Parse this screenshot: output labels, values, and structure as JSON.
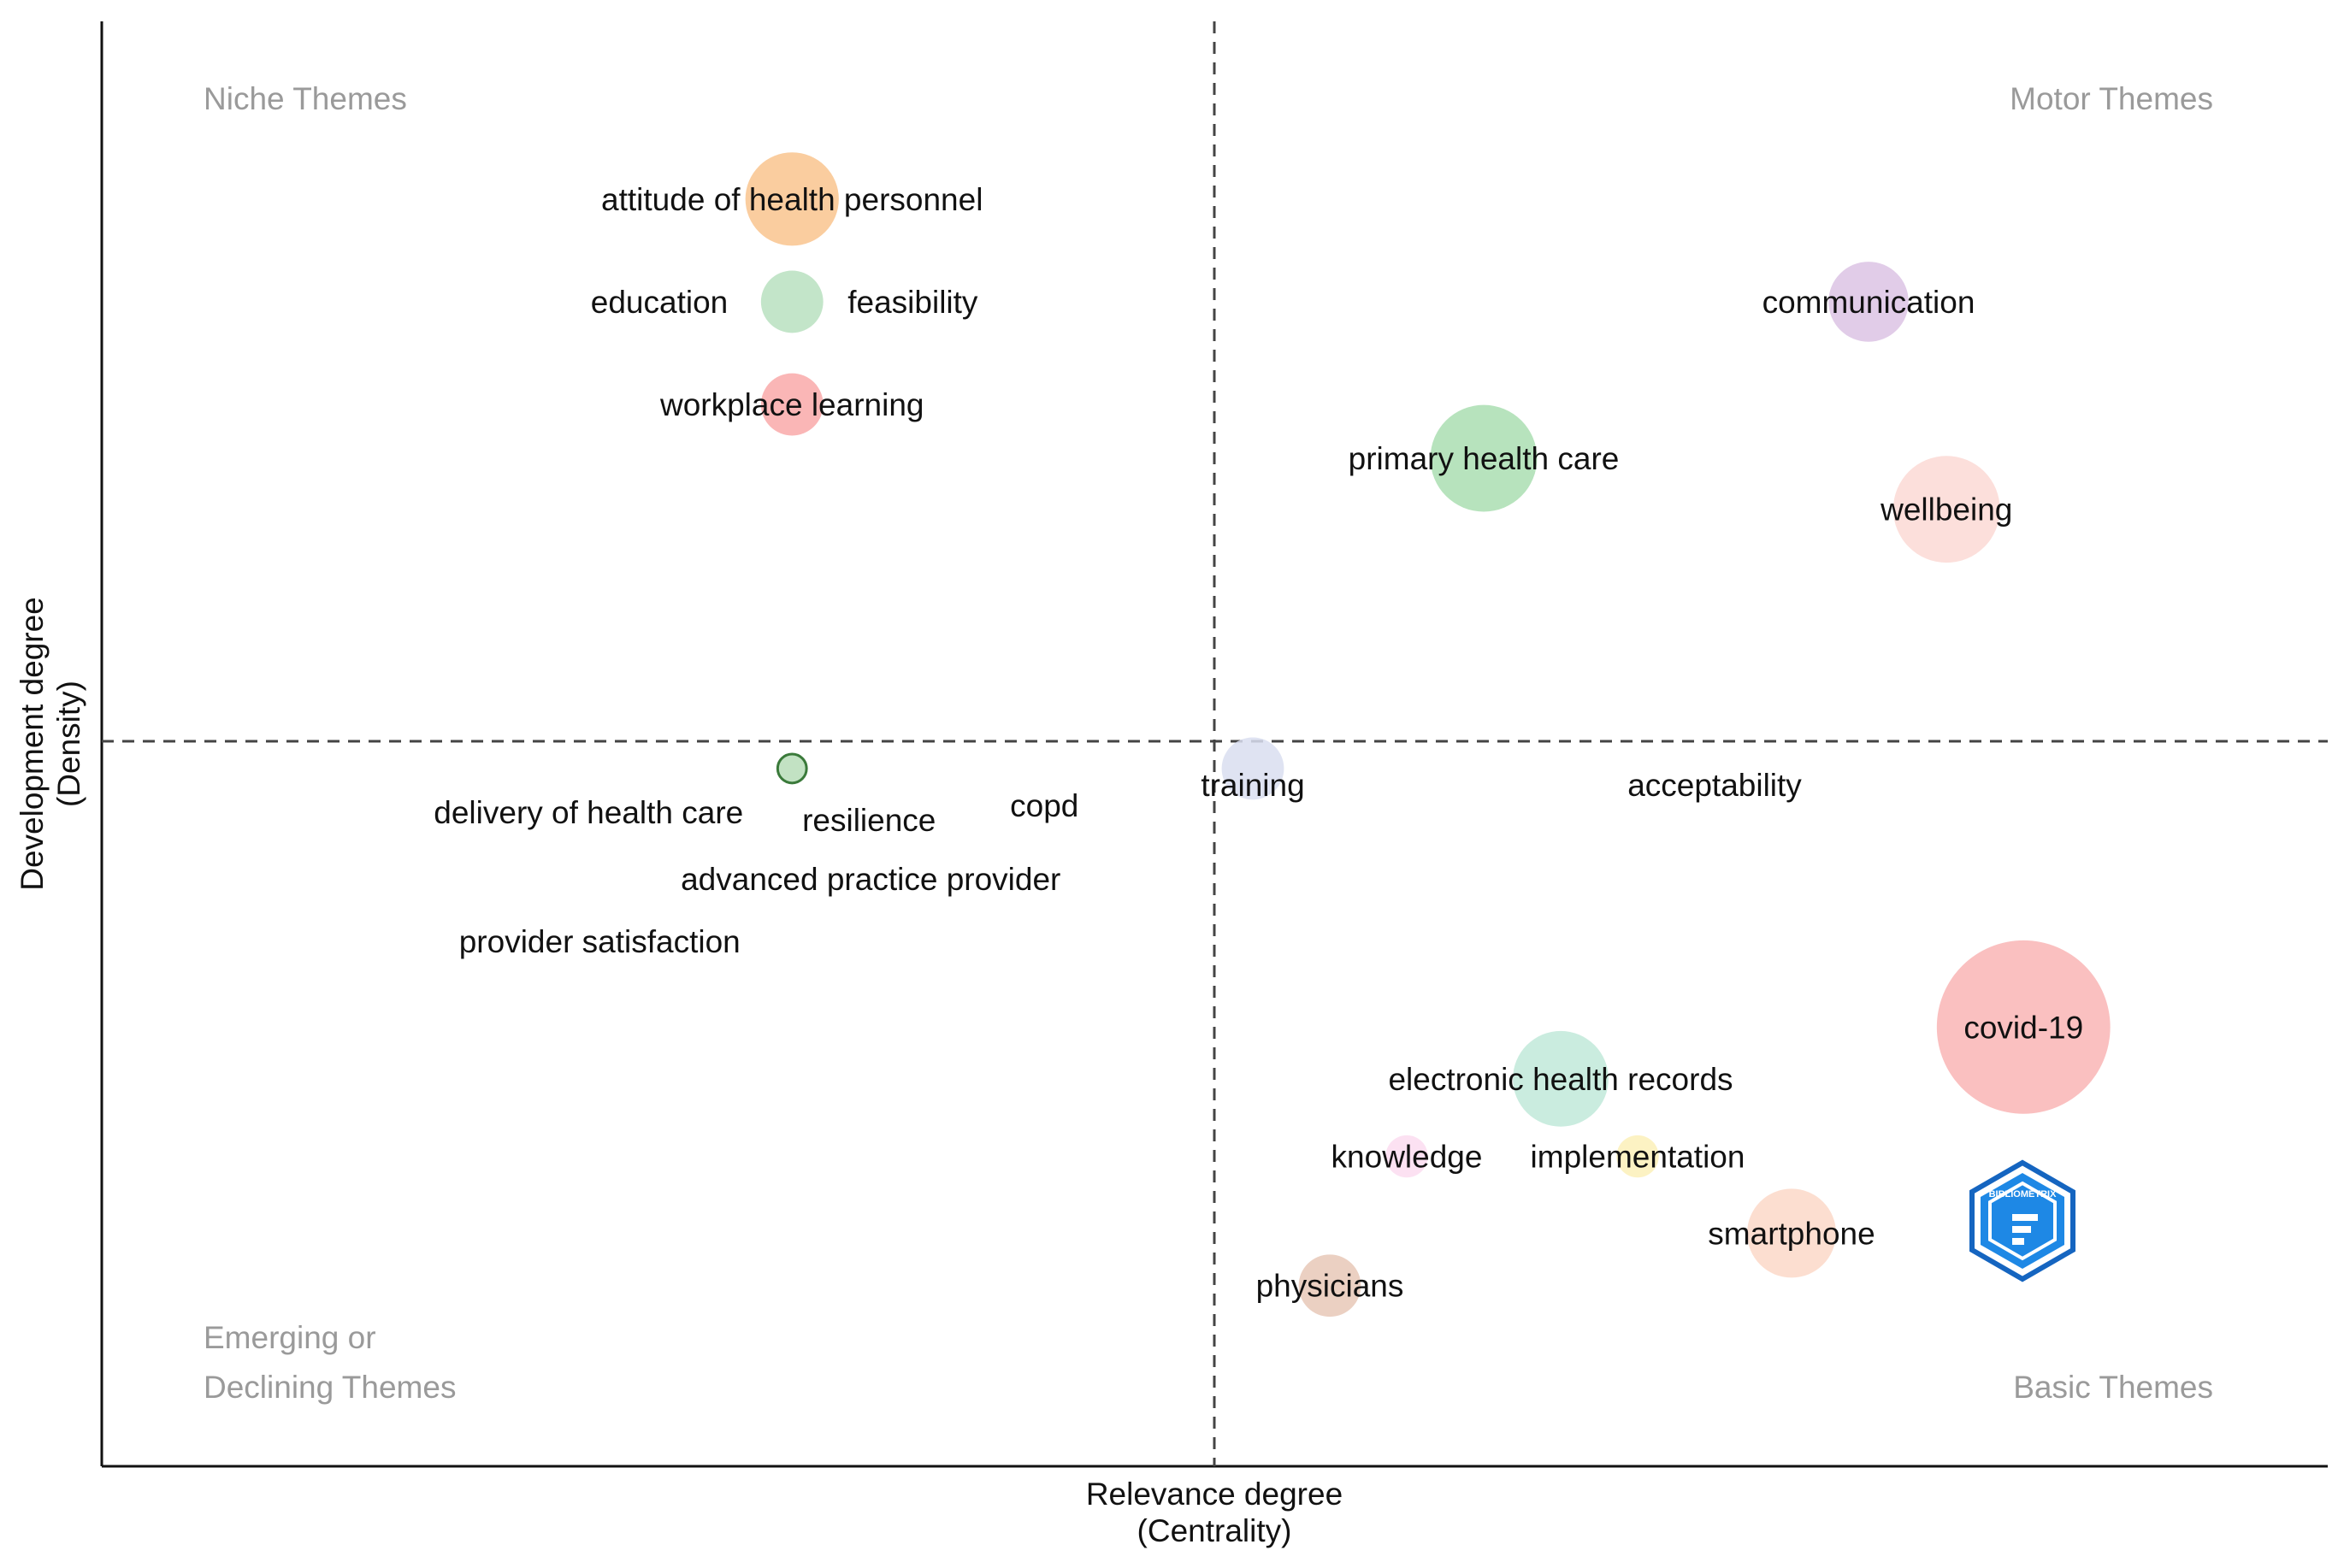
{
  "chart_data": {
    "type": "scatter",
    "subtype": "thematic-map",
    "x_axis_title": [
      "Relevance degree",
      "(Centrality)"
    ],
    "y_axis_title": [
      "Development degree",
      "(Density)"
    ],
    "quadrants": {
      "top_left": "Niche Themes",
      "top_right": "Motor Themes",
      "bottom_left": [
        "Emerging or",
        "Declining Themes"
      ],
      "bottom_right": "Basic Themes"
    },
    "divider": {
      "x": 0,
      "y": 0
    },
    "xlim": [
      -1.0,
      1.0
    ],
    "ylim": [
      -1.0,
      1.0
    ],
    "themes": [
      {
        "label": "attitude of health personnel",
        "x": -0.395,
        "y": 0.755,
        "size": 42,
        "color": "#f9c48e"
      },
      {
        "label": "education",
        "x": -0.395,
        "y": 0.612,
        "size": 28,
        "color": "#b9e0bf"
      },
      {
        "label": "feasibility",
        "x": -0.395,
        "y": 0.612,
        "size": 0,
        "color": "#b9e0bf"
      },
      {
        "label": "workplace learning",
        "x": -0.395,
        "y": 0.469,
        "size": 28,
        "color": "#f9a9a9"
      },
      {
        "label": "communication",
        "x": 0.612,
        "y": 0.612,
        "size": 36,
        "color": "#dcc3e4"
      },
      {
        "label": "primary health care",
        "x": 0.252,
        "y": 0.394,
        "size": 48,
        "color": "#aadeb1"
      },
      {
        "label": "wellbeing",
        "x": 0.685,
        "y": 0.323,
        "size": 48,
        "color": "#fcd9d5"
      },
      {
        "label": "delivery of health care",
        "x": -0.395,
        "y": -0.038,
        "size": 13,
        "color": "#b7ddb8"
      },
      {
        "label": "resilience",
        "x": -0.395,
        "y": -0.038,
        "size": 0,
        "color": "#b7ddb8"
      },
      {
        "label": "copd",
        "x": -0.395,
        "y": -0.038,
        "size": 0,
        "color": "#b7ddb8"
      },
      {
        "label": "advanced practice provider",
        "x": -0.395,
        "y": -0.038,
        "size": 0,
        "color": "#b7ddb8"
      },
      {
        "label": "provider satisfaction",
        "x": -0.395,
        "y": -0.038,
        "size": 0,
        "color": "#b7ddb8"
      },
      {
        "label": "training",
        "x": 0.036,
        "y": -0.038,
        "size": 28,
        "color": "#d9def0"
      },
      {
        "label": "acceptability",
        "x": 0.468,
        "y": -0.038,
        "size": 0,
        "color": "#d9def0"
      },
      {
        "label": "covid-19",
        "x": 0.757,
        "y": -0.398,
        "size": 78,
        "color": "#f9b5b5"
      },
      {
        "label": "electronic health records",
        "x": 0.324,
        "y": -0.47,
        "size": 43,
        "color": "#c1e9d9"
      },
      {
        "label": "knowledge",
        "x": 0.18,
        "y": -0.578,
        "size": 19,
        "color": "#fbdcf0"
      },
      {
        "label": "implementation",
        "x": 0.396,
        "y": -0.578,
        "size": 19,
        "color": "#fcf0b8"
      },
      {
        "label": "smartphone",
        "x": 0.54,
        "y": -0.685,
        "size": 40,
        "color": "#fcd8c8"
      },
      {
        "label": "physicians",
        "x": 0.108,
        "y": -0.758,
        "size": 28,
        "color": "#e8c8b7"
      }
    ],
    "watermark_text": "BIBLIOMETRIX"
  }
}
